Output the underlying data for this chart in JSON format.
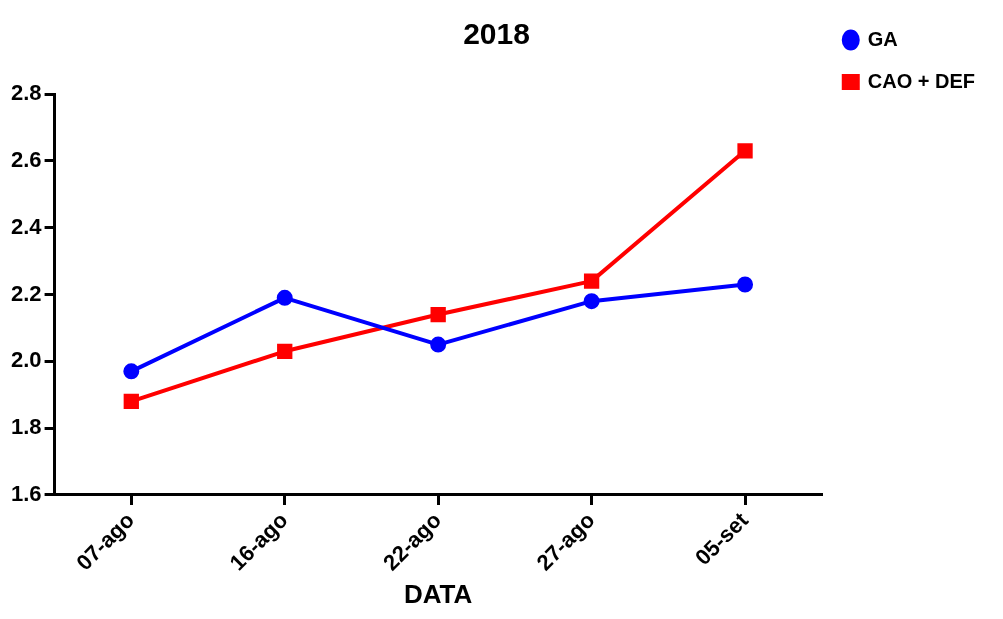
{
  "chart_data": {
    "type": "line",
    "title": "2018",
    "xlabel": "DATA",
    "categories": [
      "07-ago",
      "16-ago",
      "22-ago",
      "27-ago",
      "05-set"
    ],
    "series": [
      {
        "name": "GA",
        "color": "#0000ff",
        "marker": "circle",
        "values": [
          1.97,
          2.19,
          2.05,
          2.18,
          2.23
        ]
      },
      {
        "name": "CAO + DEF",
        "color": "#ff0000",
        "marker": "square",
        "values": [
          1.88,
          2.03,
          2.14,
          2.24,
          2.63
        ]
      }
    ],
    "ylim": [
      1.6,
      2.8
    ],
    "yticks": [
      {
        "value": 1.6,
        "label": "1.6"
      },
      {
        "value": 1.8,
        "label": "1.8"
      },
      {
        "value": 2.0,
        "label": "2.0"
      },
      {
        "value": 2.2,
        "label": "2.2"
      },
      {
        "value": 2.4,
        "label": "2.4"
      },
      {
        "value": 2.6,
        "label": "2.6"
      },
      {
        "value": 2.8,
        "label": "2.8"
      }
    ],
    "grid": false,
    "legend": "top right",
    "line_style": "solid"
  }
}
